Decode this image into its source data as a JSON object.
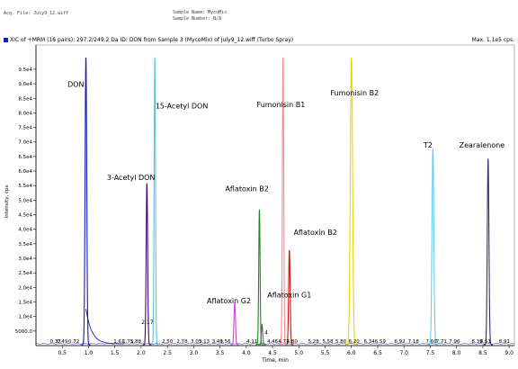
{
  "header": {
    "file_label": "Acq. File: July9_12.wiff",
    "sample_name_label": "Sample Name: MycoMix",
    "sample_number_label": "Sample Number: N/A"
  },
  "title_bar": {
    "legend_text": "XIC of +MRM (16 pairs): 297.2/249.2 Da ID: DON from Sample 3 (MycoMix) of July9_12.wiff (Turbo Spray)",
    "max_text": "Max. 1.1e5 cps."
  },
  "chart_data": {
    "type": "line",
    "xlabel": "Time, min",
    "ylabel": "Intensity, cps",
    "xlim": [
      0.0,
      9.1
    ],
    "ylim": [
      0,
      99000
    ],
    "grid": false,
    "x_ticks": [
      "0.5",
      "1.0",
      "1.5",
      "2.0",
      "2.5",
      "3.0",
      "3.5",
      "4.0",
      "4.5",
      "5.0",
      "5.5",
      "6.0",
      "6.5",
      "7.0",
      "7.5",
      "8.0",
      "8.5",
      "9.0"
    ],
    "y_ticks": [
      "5000.0",
      "1.0e4",
      "1.5e4",
      "2.0e4",
      "2.5e4",
      "3.0e4",
      "3.5e4",
      "4.0e4",
      "4.5e4",
      "5.0e4",
      "5.5e4",
      "6.0e4",
      "6.5e4",
      "7.0e4",
      "7.5e4",
      "8.0e4",
      "8.5e4",
      "9.0e4",
      "9.5e4"
    ],
    "series": [
      {
        "name": "DON",
        "color": "#1a1ab8",
        "rt": 0.95,
        "height": 99000,
        "width": 0.022
      },
      {
        "name": "3-Acetyl DON",
        "color": "#3c0a6e",
        "rt": 2.11,
        "height": 55500,
        "width": 0.02
      },
      {
        "name": "15-Acetyl DON",
        "color": "#5cc6d6",
        "rt": 2.26,
        "height": 99000,
        "width": 0.018
      },
      {
        "name": "Aflatoxin G2",
        "color": "#cc44dd",
        "rt": 3.78,
        "height": 14500,
        "width": 0.02
      },
      {
        "name": "Aflatoxin B2",
        "color": "#1a8a1a",
        "rt": 4.25,
        "height": 46500,
        "width": 0.018
      },
      {
        "name": "Aflatoxin G1",
        "color": "#666666",
        "rt": 4.3,
        "height": 7000,
        "width": 0.018
      },
      {
        "name": "Aflatoxin B2",
        "color": "#cc1111",
        "rt": 4.82,
        "height": 32500,
        "width": 0.02
      },
      {
        "name": "Fumonisin B1",
        "color": "#ff8888",
        "rt": 4.7,
        "height": 99000,
        "width": 0.018
      },
      {
        "name": "Fumonisin B2",
        "color": "#e6d800",
        "rt": 6.0,
        "height": 99000,
        "width": 0.03
      },
      {
        "name": "T2",
        "color": "#66ccee",
        "rt": 7.55,
        "height": 67500,
        "width": 0.025
      },
      {
        "name": "Zearalenone",
        "color": "#333366",
        "rt": 8.6,
        "height": 64000,
        "width": 0.022
      }
    ],
    "peak_labels": [
      {
        "text": "DON",
        "x": 0.6,
        "y": 89000
      },
      {
        "text": "3-Acetyl DON",
        "x": 1.35,
        "y": 57000
      },
      {
        "text": "15-Acetyl DON",
        "x": 2.27,
        "y": 81500
      },
      {
        "text": "Fumonisin B1",
        "x": 4.2,
        "y": 82000
      },
      {
        "text": "Fumonisin B2",
        "x": 5.6,
        "y": 86000
      },
      {
        "text": "Aflatoxin B2",
        "x": 3.6,
        "y": 53000
      },
      {
        "text": "Aflatoxin B2",
        "x": 4.9,
        "y": 38000
      },
      {
        "text": "Aflatoxin G2",
        "x": 3.25,
        "y": 14500
      },
      {
        "text": "Aflatoxin G1",
        "x": 4.4,
        "y": 16500
      },
      {
        "text": "T2",
        "x": 7.37,
        "y": 68000
      },
      {
        "text": "Zearalenone",
        "x": 8.05,
        "y": 68000
      }
    ],
    "rt_labels": [
      {
        "text": "0.37",
        "x": 0.37
      },
      {
        "text": "0.49",
        "x": 0.5
      },
      {
        "text": "0.72",
        "x": 0.72
      },
      {
        "text": "1.61",
        "x": 1.58
      },
      {
        "text": "1.75",
        "x": 1.75
      },
      {
        "text": "1.88",
        "x": 1.9
      },
      {
        "text": "2.50",
        "x": 2.5
      },
      {
        "text": "2.78",
        "x": 2.78
      },
      {
        "text": "3.05",
        "x": 3.05
      },
      {
        "text": "3.13",
        "x": 3.2
      },
      {
        "text": "3.49",
        "x": 3.45
      },
      {
        "text": "3.56",
        "x": 3.6
      },
      {
        "text": "4.11",
        "x": 4.11
      },
      {
        "text": "4.46",
        "x": 4.5
      },
      {
        "text": "4.71",
        "x": 4.71
      },
      {
        "text": "4.80",
        "x": 4.87
      },
      {
        "text": "5.28",
        "x": 5.28
      },
      {
        "text": "5.58",
        "x": 5.55
      },
      {
        "text": "5.80",
        "x": 5.8
      },
      {
        "text": "6.20",
        "x": 6.05
      },
      {
        "text": "6.34",
        "x": 6.34
      },
      {
        "text": "6.59",
        "x": 6.55
      },
      {
        "text": "6.92",
        "x": 6.92
      },
      {
        "text": "7.18",
        "x": 7.18
      },
      {
        "text": "7.60",
        "x": 7.52
      },
      {
        "text": "7.71",
        "x": 7.71
      },
      {
        "text": "7.96",
        "x": 7.96
      },
      {
        "text": "8.39",
        "x": 8.39
      },
      {
        "text": "8.51",
        "x": 8.55
      },
      {
        "text": "8.91",
        "x": 8.91
      }
    ],
    "extra_labels": [
      {
        "text": "2.17",
        "x": 2.12,
        "y": 7500
      },
      {
        "text": "4",
        "x": 4.38,
        "y": 3800
      }
    ]
  }
}
